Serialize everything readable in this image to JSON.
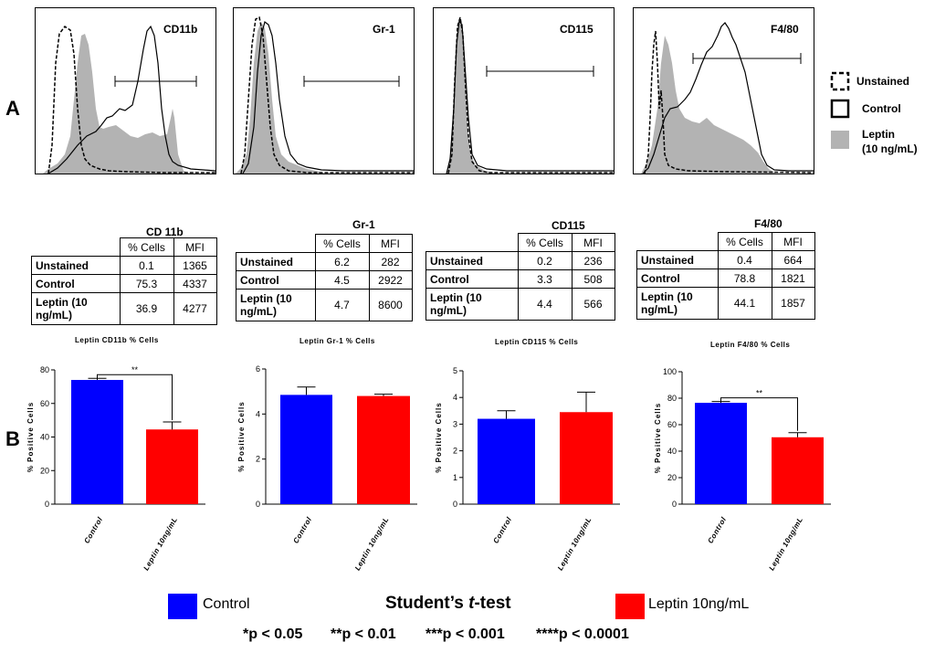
{
  "panel_labels": {
    "a": "A",
    "b": "B"
  },
  "colors": {
    "control": "#0000ff",
    "leptin": "#ff0000",
    "leptin_fill": "#b3b3b3"
  },
  "hist_legend": {
    "unstained": "Unstained",
    "control": "Control",
    "leptin_line1": "Leptin",
    "leptin_line2": "(10 ng/mL)"
  },
  "histograms": [
    {
      "marker": "CD11b"
    },
    {
      "marker": "Gr-1"
    },
    {
      "marker": "CD115"
    },
    {
      "marker": "F4/80"
    }
  ],
  "tables": [
    {
      "title": "CD 11b",
      "headers": [
        "% Cells",
        "MFI"
      ],
      "rows": [
        {
          "label": "Unstained",
          "cells": [
            "0.1",
            "1365"
          ]
        },
        {
          "label": "Control",
          "cells": [
            "75.3",
            "4337"
          ]
        },
        {
          "label": "Leptin (10 ng/mL)",
          "cells": [
            "36.9",
            "4277"
          ]
        }
      ]
    },
    {
      "title": "Gr-1",
      "headers": [
        "% Cells",
        "MFI"
      ],
      "rows": [
        {
          "label": "Unstained",
          "cells": [
            "6.2",
            "282"
          ]
        },
        {
          "label": "Control",
          "cells": [
            "4.5",
            "2922"
          ]
        },
        {
          "label": "Leptin (10 ng/mL)",
          "cells": [
            "4.7",
            "8600"
          ]
        }
      ]
    },
    {
      "title": "CD115",
      "headers": [
        "% Cells",
        "MFI"
      ],
      "rows": [
        {
          "label": "Unstained",
          "cells": [
            "0.2",
            "236"
          ]
        },
        {
          "label": "Control",
          "cells": [
            "3.3",
            "508"
          ]
        },
        {
          "label": "Leptin (10 ng/mL)",
          "cells": [
            "4.4",
            "566"
          ]
        }
      ]
    },
    {
      "title": "F4/80",
      "headers": [
        "% Cells",
        "MFI"
      ],
      "rows": [
        {
          "label": "Unstained",
          "cells": [
            "0.4",
            "664"
          ]
        },
        {
          "label": "Control",
          "cells": [
            "78.8",
            "1821"
          ]
        },
        {
          "label": "Leptin (10 ng/mL)",
          "cells": [
            "44.1",
            "1857"
          ]
        }
      ]
    }
  ],
  "chart_data": [
    {
      "type": "bar",
      "title": "Leptin CD11b % Cells",
      "ylabel": "% Positive Cells",
      "categories": [
        "Control",
        "Leptin 10ng/mL"
      ],
      "values": [
        74,
        44.5
      ],
      "errors": [
        1,
        4.5
      ],
      "ylim": [
        0,
        80
      ],
      "yticks": [
        "0",
        "20",
        "40",
        "60",
        "80"
      ],
      "significance": "**"
    },
    {
      "type": "bar",
      "title": "Leptin Gr-1 % Cells",
      "ylabel": "% Positive Cells",
      "categories": [
        "Control",
        "Leptin 10ng/mL"
      ],
      "values": [
        4.85,
        4.8
      ],
      "errors": [
        0.35,
        0.08
      ],
      "ylim": [
        0,
        6
      ],
      "yticks": [
        "0",
        "2",
        "4",
        "6"
      ],
      "significance": ""
    },
    {
      "type": "bar",
      "title": "Leptin CD115 % Cells",
      "ylabel": "% Positive Cells",
      "categories": [
        "Control",
        "Leptin 10ng/mL"
      ],
      "values": [
        3.2,
        3.45
      ],
      "errors": [
        0.3,
        0.75
      ],
      "ylim": [
        0,
        5
      ],
      "yticks": [
        "0",
        "1",
        "2",
        "3",
        "4",
        "5"
      ],
      "significance": ""
    },
    {
      "type": "bar",
      "title": "Leptin F4/80 % Cells",
      "ylabel": "% Positive Cells",
      "categories": [
        "Control",
        "Leptin 10ng/mL"
      ],
      "values": [
        76.5,
        50.5
      ],
      "errors": [
        1,
        3.5
      ],
      "ylim": [
        0,
        100
      ],
      "yticks": [
        "0",
        "20",
        "40",
        "60",
        "80",
        "100"
      ],
      "significance": "**"
    }
  ],
  "bottom_legend": {
    "control": "Control",
    "leptin": "Leptin 10ng/mL",
    "test_prefix": "Student’s ",
    "test_italic": "t",
    "test_suffix": "-test",
    "pvalues": [
      "*p < 0.05",
      "**p < 0.01",
      "***p < 0.001",
      "****p < 0.0001"
    ]
  }
}
